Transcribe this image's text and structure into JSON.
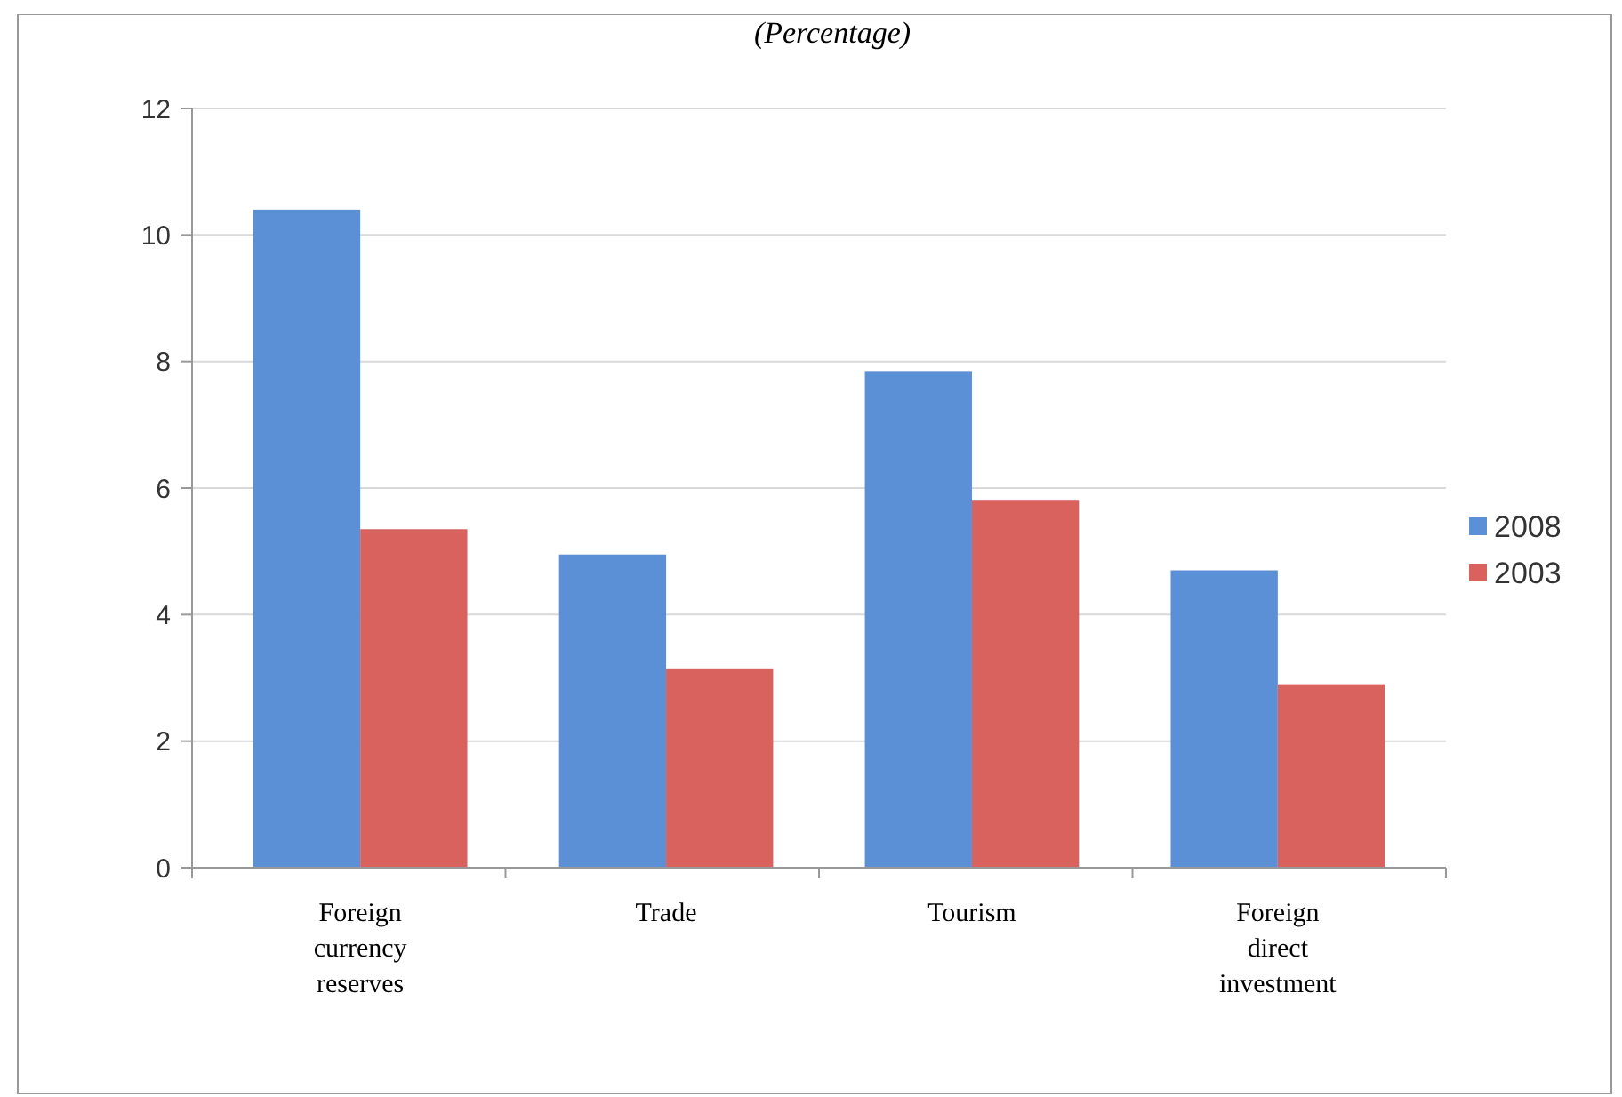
{
  "chart_data": {
    "type": "bar",
    "title": "(Percentage)",
    "categories": [
      "Foreign currency reserves",
      "Trade",
      "Tourism",
      "Foreign direct investment"
    ],
    "series": [
      {
        "name": "2008",
        "color": "#5b8fd6",
        "values": [
          10.4,
          4.95,
          7.85,
          4.7
        ]
      },
      {
        "name": "2003",
        "color": "#d9625e",
        "values": [
          5.35,
          3.15,
          5.8,
          2.9
        ]
      }
    ],
    "ylim": [
      0,
      12
    ],
    "yticks": [
      0,
      2,
      4,
      6,
      8,
      10,
      12
    ],
    "grid": "y",
    "legend": "right"
  }
}
